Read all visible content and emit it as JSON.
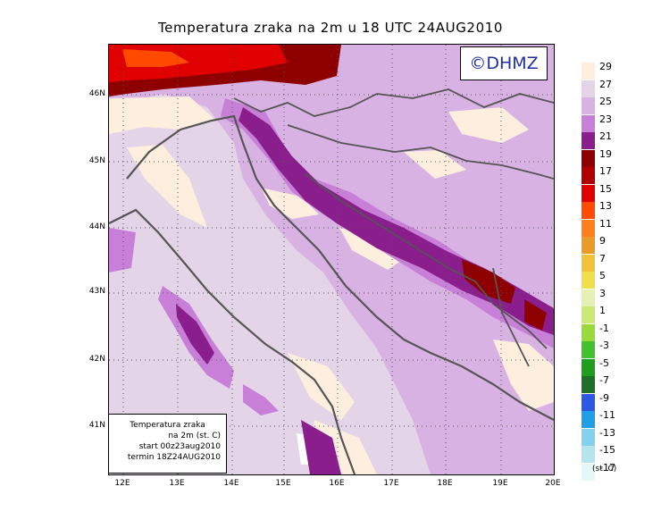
{
  "title": "Temperatura zraka na 2m u 18 UTC 24AUG2010",
  "logo": "©DHMZ",
  "infobox": {
    "line1": "Temperatura zraka",
    "line2": "na 2m (st. C)",
    "line3": "start 00z23aug2010",
    "line4": "termin 18Z24AUG2010"
  },
  "axes": {
    "lat_labels": [
      "46N",
      "45N",
      "44N",
      "43N",
      "42N",
      "41N"
    ],
    "lon_labels": [
      "12E",
      "13E",
      "14E",
      "15E",
      "16E",
      "17E",
      "18E",
      "19E",
      "20E"
    ]
  },
  "legend": {
    "unit": "(st. C)",
    "labels": [
      "29",
      "27",
      "25",
      "23",
      "21",
      "19",
      "17",
      "15",
      "13",
      "11",
      "9",
      "7",
      "5",
      "3",
      "1",
      "-1",
      "-3",
      "-5",
      "-7",
      "-9",
      "-11",
      "-13",
      "-15",
      "-17"
    ],
    "colors": [
      "#fdeede",
      "#e4d4e7",
      "#d8b2e2",
      "#c77fd8",
      "#8a1e8c",
      "#8e0000",
      "#b10000",
      "#e00000",
      "#ff4a00",
      "#ff7f1a",
      "#e99b28",
      "#f1c23a",
      "#eedf4a",
      "#e5f0b3",
      "#c8ea74",
      "#99d93a",
      "#42c02e",
      "#1f9d1f",
      "#1e6f2a",
      "#2d58e6",
      "#1e9fe6",
      "#84d1ee",
      "#b5e4ee",
      "#e4f8f8"
    ]
  },
  "chart_data": {
    "type": "heatmap",
    "title": "Temperatura zraka na 2m u 18 UTC 24AUG2010",
    "variable": "air temperature at 2 m",
    "unit": "st. C",
    "lon_range": [
      11.8,
      20.0
    ],
    "lat_range": [
      40.3,
      46.7
    ],
    "color_scale_labels": [
      29,
      27,
      25,
      23,
      21,
      19,
      17,
      15,
      13,
      11,
      9,
      7,
      5,
      3,
      1,
      -1,
      -3,
      -5,
      -7,
      -9,
      -11,
      -13,
      -15,
      -17
    ]
  }
}
